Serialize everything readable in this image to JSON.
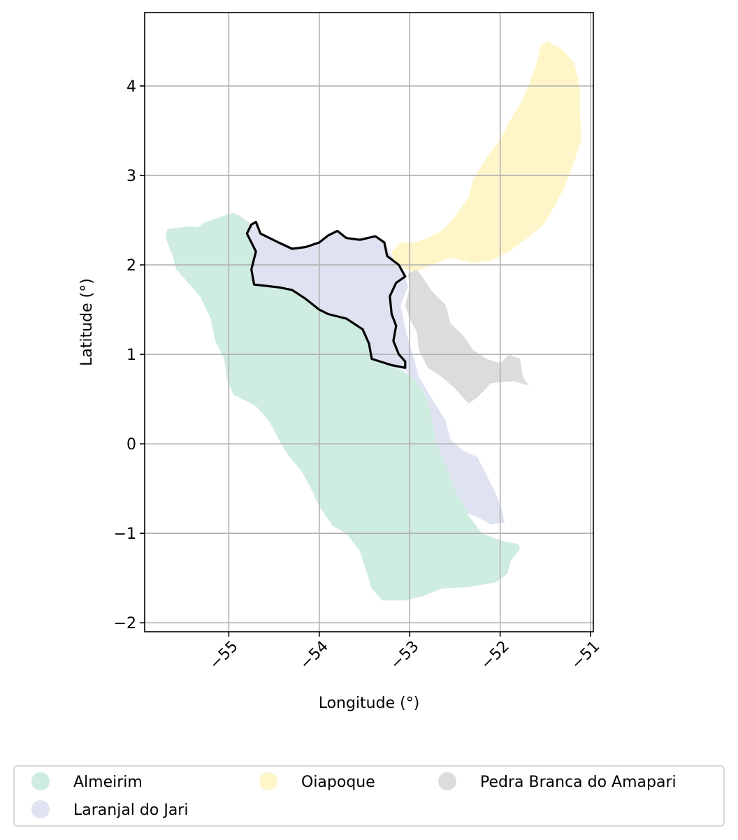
{
  "chart_data": {
    "type": "map",
    "xlabel": "Longitude (°)",
    "ylabel": "Latitude (°)",
    "xlim": [
      -55.93,
      -50.97
    ],
    "ylim": [
      -2.1,
      4.82
    ],
    "x_ticks": [
      {
        "value": -55,
        "label": "−55"
      },
      {
        "value": -54,
        "label": "−54"
      },
      {
        "value": -53,
        "label": "−53"
      },
      {
        "value": -52,
        "label": "−52"
      },
      {
        "value": -51,
        "label": "−51"
      }
    ],
    "y_ticks": [
      {
        "value": -2,
        "label": "−2"
      },
      {
        "value": -1,
        "label": "−1"
      },
      {
        "value": 0,
        "label": "0"
      },
      {
        "value": 1,
        "label": "1"
      },
      {
        "value": 2,
        "label": "2"
      },
      {
        "value": 3,
        "label": "3"
      },
      {
        "value": 4,
        "label": "4"
      }
    ],
    "grid": true,
    "legend_placement": "bottom-center",
    "regions": [
      {
        "name": "Almeirim",
        "color": "#cfece0",
        "polygon": [
          [
            -55.68,
            2.4
          ],
          [
            -55.45,
            2.43
          ],
          [
            -55.35,
            2.42
          ],
          [
            -55.25,
            2.48
          ],
          [
            -55.05,
            2.55
          ],
          [
            -54.95,
            2.58
          ],
          [
            -54.88,
            2.55
          ],
          [
            -54.75,
            2.45
          ],
          [
            -54.78,
            2.3
          ],
          [
            -54.7,
            2.15
          ],
          [
            -54.75,
            1.95
          ],
          [
            -54.7,
            1.8
          ],
          [
            -54.45,
            1.75
          ],
          [
            -54.3,
            1.72
          ],
          [
            -54.15,
            1.62
          ],
          [
            -54.0,
            1.5
          ],
          [
            -53.85,
            1.42
          ],
          [
            -53.65,
            1.38
          ],
          [
            -53.5,
            1.25
          ],
          [
            -53.42,
            1.1
          ],
          [
            -53.4,
            0.97
          ],
          [
            -53.2,
            0.88
          ],
          [
            -53.05,
            0.8
          ],
          [
            -52.98,
            0.75
          ],
          [
            -52.85,
            0.6
          ],
          [
            -52.75,
            0.38
          ],
          [
            -52.72,
            0.18
          ],
          [
            -52.6,
            0.05
          ],
          [
            -52.48,
            -0.25
          ],
          [
            -52.4,
            -0.55
          ],
          [
            -52.35,
            -0.8
          ],
          [
            -52.2,
            -1.0
          ],
          [
            -52.0,
            -1.08
          ],
          [
            -51.8,
            -1.12
          ],
          [
            -51.78,
            -1.18
          ],
          [
            -51.88,
            -1.3
          ],
          [
            -51.92,
            -1.45
          ],
          [
            -52.05,
            -1.55
          ],
          [
            -52.35,
            -1.6
          ],
          [
            -52.65,
            -1.62
          ],
          [
            -52.85,
            -1.7
          ],
          [
            -53.05,
            -1.75
          ],
          [
            -53.3,
            -1.75
          ],
          [
            -53.42,
            -1.62
          ],
          [
            -53.55,
            -1.2
          ],
          [
            -53.7,
            -1.0
          ],
          [
            -53.85,
            -0.92
          ],
          [
            -54.0,
            -0.7
          ],
          [
            -54.1,
            -0.48
          ],
          [
            -54.2,
            -0.3
          ],
          [
            -54.35,
            -0.12
          ],
          [
            -54.45,
            0.05
          ],
          [
            -54.55,
            0.25
          ],
          [
            -54.7,
            0.42
          ],
          [
            -54.85,
            0.5
          ],
          [
            -54.95,
            0.55
          ],
          [
            -55.02,
            0.72
          ],
          [
            -55.05,
            0.95
          ],
          [
            -55.15,
            1.15
          ],
          [
            -55.2,
            1.4
          ],
          [
            -55.32,
            1.65
          ],
          [
            -55.45,
            1.8
          ],
          [
            -55.58,
            1.95
          ],
          [
            -55.62,
            2.1
          ],
          [
            -55.7,
            2.3
          ]
        ]
      },
      {
        "name": "Laranjal do Jari",
        "color": "#dfe3f1",
        "polygon": [
          [
            -54.75,
            2.45
          ],
          [
            -54.7,
            2.47
          ],
          [
            -54.65,
            2.35
          ],
          [
            -54.45,
            2.25
          ],
          [
            -54.3,
            2.18
          ],
          [
            -54.15,
            2.2
          ],
          [
            -54.0,
            2.25
          ],
          [
            -53.9,
            2.33
          ],
          [
            -53.8,
            2.36
          ],
          [
            -53.7,
            2.3
          ],
          [
            -53.55,
            2.28
          ],
          [
            -53.38,
            2.3
          ],
          [
            -53.28,
            2.25
          ],
          [
            -53.2,
            2.1
          ],
          [
            -53.1,
            1.95
          ],
          [
            -53.05,
            1.87
          ],
          [
            -53.02,
            1.75
          ],
          [
            -53.1,
            1.55
          ],
          [
            -53.05,
            1.3
          ],
          [
            -53.0,
            1.1
          ],
          [
            -52.95,
            0.95
          ],
          [
            -52.9,
            0.75
          ],
          [
            -52.8,
            0.58
          ],
          [
            -52.7,
            0.42
          ],
          [
            -52.6,
            0.25
          ],
          [
            -52.55,
            0.05
          ],
          [
            -52.4,
            -0.08
          ],
          [
            -52.25,
            -0.15
          ],
          [
            -52.15,
            -0.35
          ],
          [
            -52.05,
            -0.55
          ],
          [
            -51.98,
            -0.75
          ],
          [
            -51.95,
            -0.88
          ],
          [
            -52.1,
            -0.9
          ],
          [
            -52.25,
            -0.82
          ],
          [
            -52.35,
            -0.78
          ],
          [
            -52.48,
            -0.55
          ],
          [
            -52.6,
            -0.25
          ],
          [
            -52.72,
            0.05
          ],
          [
            -52.75,
            0.25
          ],
          [
            -52.82,
            0.55
          ],
          [
            -52.95,
            0.72
          ],
          [
            -53.05,
            0.82
          ],
          [
            -53.2,
            0.88
          ],
          [
            -53.42,
            0.97
          ],
          [
            -53.45,
            1.15
          ],
          [
            -53.55,
            1.3
          ],
          [
            -53.75,
            1.4
          ],
          [
            -53.95,
            1.45
          ],
          [
            -54.15,
            1.62
          ],
          [
            -54.35,
            1.75
          ],
          [
            -54.72,
            1.78
          ],
          [
            -54.75,
            1.95
          ],
          [
            -54.72,
            2.18
          ],
          [
            -54.8,
            2.32
          ]
        ]
      },
      {
        "name": "Oiapoque",
        "color": "#fef6c9",
        "polygon": [
          [
            -53.2,
            2.15
          ],
          [
            -53.1,
            2.25
          ],
          [
            -52.95,
            2.25
          ],
          [
            -52.8,
            2.3
          ],
          [
            -52.62,
            2.4
          ],
          [
            -52.5,
            2.55
          ],
          [
            -52.35,
            2.75
          ],
          [
            -52.3,
            2.95
          ],
          [
            -52.15,
            3.2
          ],
          [
            -52.0,
            3.4
          ],
          [
            -51.9,
            3.6
          ],
          [
            -51.75,
            3.85
          ],
          [
            -51.65,
            4.1
          ],
          [
            -51.6,
            4.25
          ],
          [
            -51.55,
            4.45
          ],
          [
            -51.48,
            4.5
          ],
          [
            -51.3,
            4.4
          ],
          [
            -51.18,
            4.25
          ],
          [
            -51.12,
            4.0
          ],
          [
            -51.12,
            3.7
          ],
          [
            -51.1,
            3.4
          ],
          [
            -51.2,
            3.1
          ],
          [
            -51.3,
            2.85
          ],
          [
            -51.4,
            2.65
          ],
          [
            -51.52,
            2.45
          ],
          [
            -51.7,
            2.3
          ],
          [
            -51.9,
            2.15
          ],
          [
            -52.1,
            2.05
          ],
          [
            -52.3,
            2.02
          ],
          [
            -52.55,
            2.08
          ],
          [
            -52.75,
            2.0
          ],
          [
            -52.95,
            1.92
          ],
          [
            -53.05,
            1.95
          ],
          [
            -53.18,
            2.05
          ]
        ]
      },
      {
        "name": "Pedra Branca do Amapari",
        "color": "#dcdcdc",
        "polygon": [
          [
            -53.02,
            1.9
          ],
          [
            -52.92,
            1.95
          ],
          [
            -52.85,
            1.85
          ],
          [
            -52.75,
            1.7
          ],
          [
            -52.6,
            1.55
          ],
          [
            -52.55,
            1.35
          ],
          [
            -52.4,
            1.2
          ],
          [
            -52.3,
            1.05
          ],
          [
            -52.15,
            0.95
          ],
          [
            -52.0,
            0.9
          ],
          [
            -51.9,
            1.0
          ],
          [
            -51.78,
            0.95
          ],
          [
            -51.75,
            0.75
          ],
          [
            -51.68,
            0.65
          ],
          [
            -51.85,
            0.7
          ],
          [
            -52.1,
            0.68
          ],
          [
            -52.25,
            0.52
          ],
          [
            -52.35,
            0.45
          ],
          [
            -52.5,
            0.62
          ],
          [
            -52.65,
            0.75
          ],
          [
            -52.8,
            0.85
          ],
          [
            -52.9,
            1.05
          ],
          [
            -52.92,
            1.25
          ],
          [
            -53.0,
            1.4
          ],
          [
            -53.05,
            1.55
          ],
          [
            -53.0,
            1.75
          ]
        ]
      }
    ],
    "highlight": {
      "polygon": [
        [
          -54.75,
          2.45
        ],
        [
          -54.7,
          2.48
        ],
        [
          -54.65,
          2.35
        ],
        [
          -54.45,
          2.25
        ],
        [
          -54.3,
          2.18
        ],
        [
          -54.15,
          2.2
        ],
        [
          -54.0,
          2.25
        ],
        [
          -53.9,
          2.33
        ],
        [
          -53.8,
          2.38
        ],
        [
          -53.7,
          2.3
        ],
        [
          -53.55,
          2.28
        ],
        [
          -53.38,
          2.32
        ],
        [
          -53.28,
          2.25
        ],
        [
          -53.25,
          2.1
        ],
        [
          -53.12,
          2.0
        ],
        [
          -53.05,
          1.87
        ],
        [
          -53.15,
          1.8
        ],
        [
          -53.22,
          1.65
        ],
        [
          -53.2,
          1.45
        ],
        [
          -53.15,
          1.32
        ],
        [
          -53.18,
          1.15
        ],
        [
          -53.12,
          1.0
        ],
        [
          -53.05,
          0.92
        ],
        [
          -53.05,
          0.85
        ],
        [
          -53.2,
          0.88
        ],
        [
          -53.42,
          0.95
        ],
        [
          -53.45,
          1.12
        ],
        [
          -53.52,
          1.28
        ],
        [
          -53.7,
          1.4
        ],
        [
          -53.9,
          1.45
        ],
        [
          -54.0,
          1.5
        ],
        [
          -54.15,
          1.62
        ],
        [
          -54.3,
          1.72
        ],
        [
          -54.45,
          1.75
        ],
        [
          -54.72,
          1.78
        ],
        [
          -54.75,
          1.95
        ],
        [
          -54.7,
          2.15
        ],
        [
          -54.8,
          2.35
        ]
      ]
    }
  },
  "legend": {
    "items": [
      {
        "label": "Almeirim",
        "color": "#cfece0"
      },
      {
        "label": "Laranjal do Jari",
        "color": "#dfe3f1"
      },
      {
        "label": "Oiapoque",
        "color": "#fef6c9"
      },
      {
        "label": "Pedra Branca do Amapari",
        "color": "#dcdcdc"
      }
    ]
  }
}
